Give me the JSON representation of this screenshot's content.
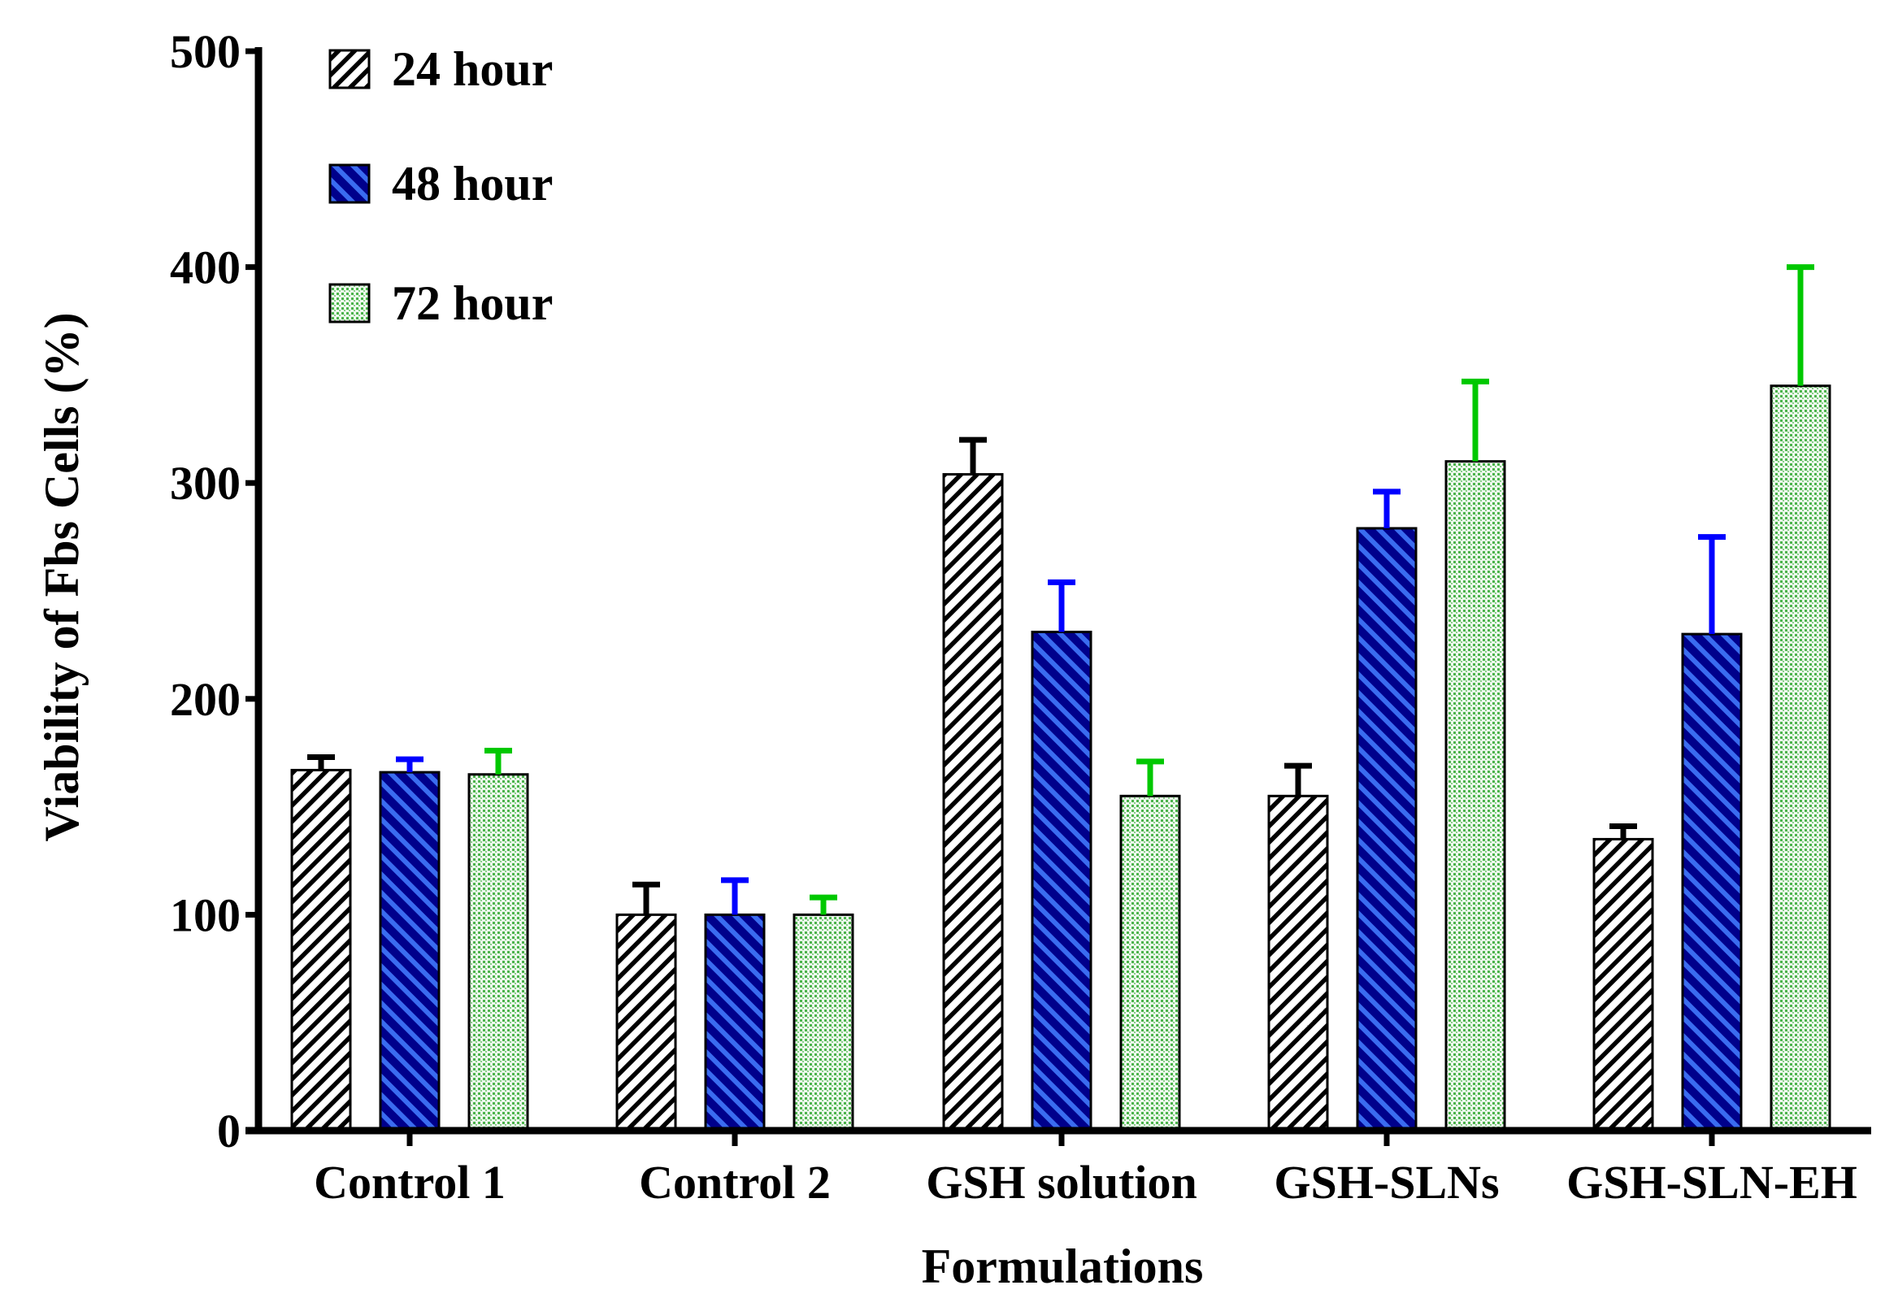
{
  "chart_data": {
    "type": "bar",
    "title": "",
    "xlabel": "Formulations",
    "ylabel": "Viability of Fbs Cells (%)",
    "ylim": [
      0,
      500
    ],
    "yticks": [
      "0",
      "100",
      "200",
      "300",
      "400",
      "500"
    ],
    "grid": false,
    "legend_position": "top-left",
    "categories": [
      "Control 1",
      "Control 2",
      "GSH solution",
      "GSH-SLNs",
      "GSH-SLN-EH"
    ],
    "series": [
      {
        "name": "24 hour",
        "fill": "#ffffff",
        "stripe": "#000000",
        "error_color": "#000000",
        "values": [
          167,
          100,
          304,
          155,
          135
        ],
        "errors": [
          6,
          14,
          16,
          14,
          6
        ]
      },
      {
        "name": "48 hour",
        "fill": "#00008b",
        "stripe": "#3a6cf0",
        "error_color": "#0000ff",
        "values": [
          166,
          100,
          231,
          279,
          230
        ],
        "errors": [
          6,
          16,
          23,
          17,
          45
        ]
      },
      {
        "name": "72 hour",
        "fill": "#e6f6e6",
        "stripe": "#3caa3c",
        "error_color": "#00c800",
        "values": [
          165,
          100,
          155,
          310,
          345
        ],
        "errors": [
          11,
          8,
          16,
          37,
          55
        ]
      }
    ]
  }
}
